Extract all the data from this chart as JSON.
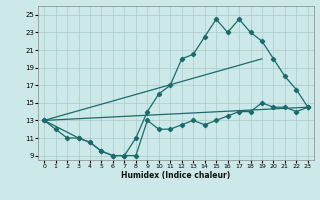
{
  "xlabel": "Humidex (Indice chaleur)",
  "background_color": "#cce8e8",
  "grid_color": "#aacccc",
  "line_color": "#1a6b6b",
  "xlim": [
    -0.5,
    23.5
  ],
  "ylim": [
    8.5,
    26
  ],
  "xticks": [
    0,
    1,
    2,
    3,
    4,
    5,
    6,
    7,
    8,
    9,
    10,
    11,
    12,
    13,
    14,
    15,
    16,
    17,
    18,
    19,
    20,
    21,
    22,
    23
  ],
  "yticks": [
    9,
    11,
    13,
    15,
    17,
    19,
    21,
    23,
    25
  ],
  "line1_x": [
    0,
    1,
    2,
    3,
    4,
    5,
    6,
    7,
    8,
    9,
    10,
    11,
    12,
    13,
    14,
    15,
    16,
    17,
    18,
    19,
    20,
    21,
    22,
    23
  ],
  "line1_y": [
    13,
    12,
    11,
    11,
    10.5,
    9.5,
    9,
    9,
    9,
    13,
    12,
    12,
    12.5,
    13,
    12.5,
    13,
    13.5,
    14,
    14,
    15,
    14.5,
    14.5,
    14,
    14.5
  ],
  "line2_x": [
    0,
    3,
    4,
    5,
    6,
    7,
    8,
    9,
    10,
    11,
    12,
    13,
    14,
    15,
    16,
    17,
    18,
    19,
    20,
    21,
    22,
    23
  ],
  "line2_y": [
    13,
    11,
    10.5,
    9.5,
    9,
    9,
    11,
    14,
    16,
    17,
    20,
    20.5,
    22.5,
    24.5,
    23,
    24.5,
    23,
    22,
    20,
    18,
    16.5,
    14.5
  ],
  "line3_x": [
    0,
    19
  ],
  "line3_y": [
    13,
    20
  ],
  "line4_x": [
    0,
    23
  ],
  "line4_y": [
    13,
    14.5
  ]
}
